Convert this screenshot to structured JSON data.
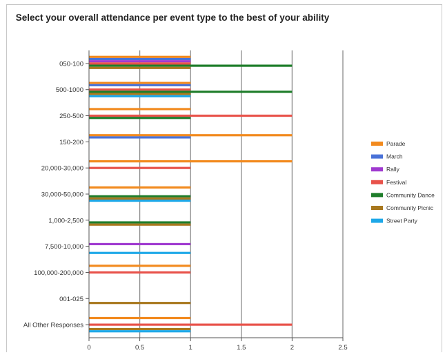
{
  "chart_data": {
    "type": "bar",
    "orientation": "horizontal",
    "title": "Select your overall attendance per event type to the best of your ability",
    "xlabel": "",
    "ylabel": "",
    "xlim": [
      0,
      2.5
    ],
    "x_ticks": [
      "0",
      "0.5",
      "1",
      "1.5",
      "2",
      "2.5"
    ],
    "grid": "vertical",
    "legend_position": "right",
    "categories": [
      "050-100",
      "500-1000",
      "250-500",
      "150-200",
      "20,000-30,000",
      "30,000-50,000",
      "1,000-2,500",
      "7,500-10,000",
      "100,000-200,000",
      "001-025",
      "All Other Responses"
    ],
    "series": [
      {
        "name": "Parade",
        "color": "#f28a1e",
        "values": [
          1,
          1,
          1,
          2,
          2,
          1,
          0,
          0,
          1,
          0,
          1
        ]
      },
      {
        "name": "March",
        "color": "#4a72d8",
        "values": [
          1,
          1,
          0,
          1,
          0,
          0,
          0,
          0,
          0,
          0,
          0
        ]
      },
      {
        "name": "Rally",
        "color": "#a03ad0",
        "values": [
          1,
          0,
          0,
          0,
          0,
          0,
          0,
          1,
          0,
          0,
          0
        ]
      },
      {
        "name": "Festival",
        "color": "#e8524a",
        "values": [
          1,
          1,
          2,
          0,
          1,
          0,
          0,
          0,
          1,
          0,
          2
        ]
      },
      {
        "name": "Community Dance",
        "color": "#1e7d2a",
        "values": [
          2,
          2,
          1,
          0,
          0,
          1,
          1,
          0,
          0,
          0,
          0
        ]
      },
      {
        "name": "Community Picnic",
        "color": "#a8781e",
        "values": [
          1,
          1,
          0,
          0,
          0,
          1,
          1,
          0,
          0,
          1,
          1
        ]
      },
      {
        "name": "Street Party",
        "color": "#1ea8e8",
        "values": [
          0,
          1,
          0,
          0,
          0,
          1,
          0,
          1,
          0,
          0,
          1
        ]
      }
    ]
  }
}
